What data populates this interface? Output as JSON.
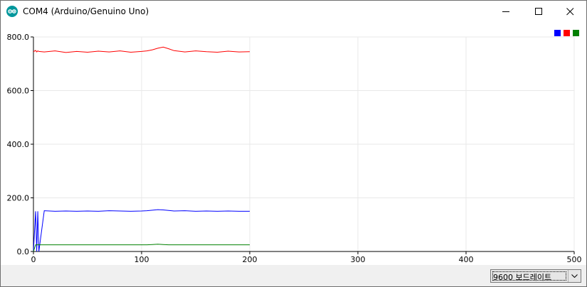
{
  "window": {
    "title": "COM4 (Arduino/Genuino Uno)",
    "icon": "arduino-logo-icon",
    "controls": [
      "minimize-icon",
      "maximize-icon",
      "close-icon"
    ]
  },
  "chart_data": {
    "type": "line",
    "title": "",
    "xlabel": "",
    "ylabel": "",
    "xlim": [
      0,
      500
    ],
    "ylim": [
      0,
      800
    ],
    "x_ticks": [
      "0",
      "100",
      "200",
      "300",
      "400",
      "500"
    ],
    "y_ticks": [
      "0.0",
      "200.0",
      "400.0",
      "600.0",
      "800.0"
    ],
    "grid": true,
    "legend_position": "top-right",
    "x": [
      0,
      2,
      3,
      4,
      5,
      10,
      20,
      30,
      40,
      50,
      60,
      70,
      80,
      90,
      100,
      105,
      110,
      115,
      120,
      125,
      130,
      140,
      150,
      160,
      170,
      180,
      190,
      200
    ],
    "series": [
      {
        "color": "#0000ff",
        "values": [
          0,
          150,
          0,
          150,
          0,
          152,
          150,
          151,
          150,
          151,
          150,
          152,
          151,
          150,
          151,
          152,
          154,
          156,
          155,
          153,
          151,
          152,
          150,
          151,
          150,
          151,
          150,
          150
        ]
      },
      {
        "color": "#ff0000",
        "values": [
          745,
          750,
          744,
          748,
          746,
          744,
          748,
          742,
          746,
          743,
          747,
          744,
          748,
          743,
          746,
          748,
          752,
          758,
          762,
          756,
          749,
          744,
          748,
          745,
          743,
          747,
          744,
          745
        ]
      },
      {
        "color": "#008000",
        "values": [
          0,
          25,
          25,
          25,
          25,
          25,
          25,
          25,
          25,
          25,
          25,
          25,
          25,
          25,
          25,
          25,
          26,
          27,
          26,
          25,
          25,
          25,
          25,
          25,
          25,
          25,
          25,
          25
        ]
      }
    ]
  },
  "statusbar": {
    "baud_rate": "9600 보드레이트",
    "dropdown_icon": "chevron-down-icon"
  }
}
